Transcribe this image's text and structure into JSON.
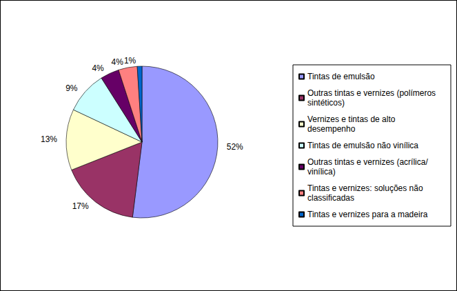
{
  "chart_data": {
    "type": "pie",
    "categories": [
      "Tintas de emulsão",
      "Outras tintas e vernizes (polímeros sintéticos)",
      "Vernizes e tintas de alto desempenho",
      "Tintas de emulsão não vinílica",
      "Outras tintas e vernizes (acrílica/ vinílica)",
      "Tintas e vernizes: soluções não classificadas",
      "Tintas e vernizes para a madeira"
    ],
    "values": [
      52,
      17,
      13,
      9,
      4,
      4,
      1
    ],
    "value_labels": [
      "52%",
      "17%",
      "13%",
      "9%",
      "4%",
      "4%",
      "1%"
    ],
    "colors": [
      "#9999ff",
      "#993366",
      "#ffffcc",
      "#ccffff",
      "#660066",
      "#ff8080",
      "#0066cc"
    ],
    "data_labels": true,
    "legend": "right"
  }
}
